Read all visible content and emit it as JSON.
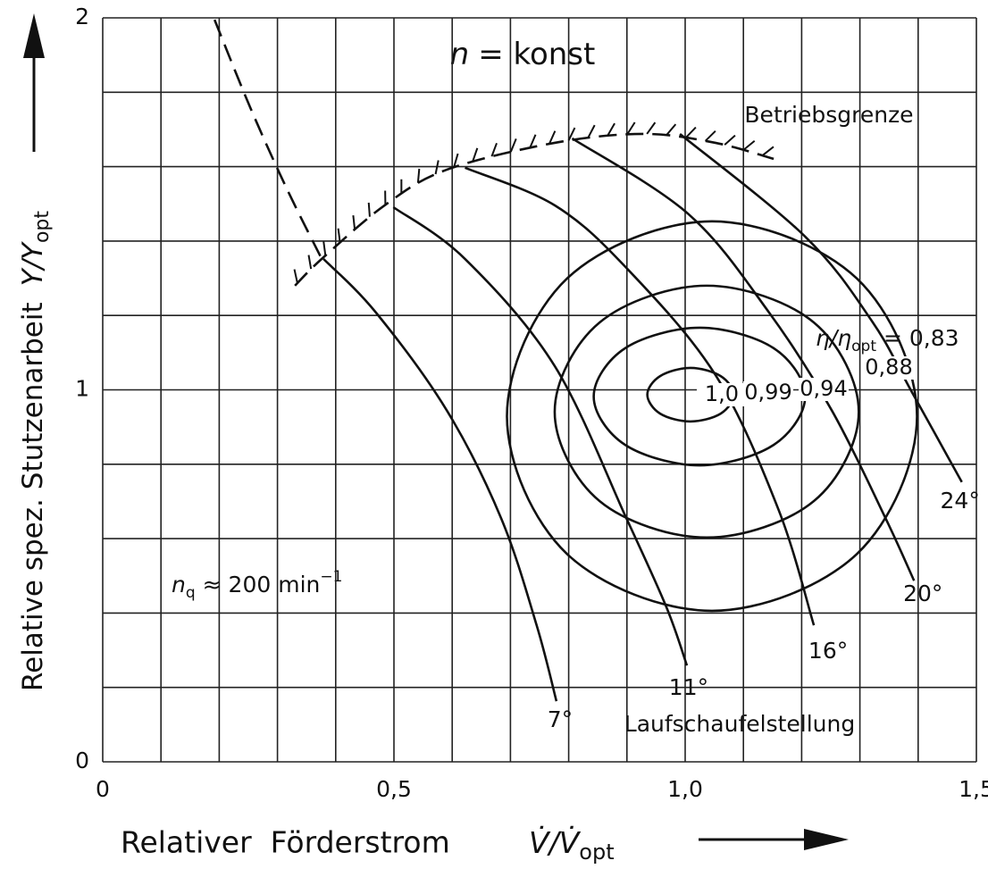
{
  "chart_data": {
    "type": "line",
    "color": "#111111",
    "xlim": [
      0,
      1.5
    ],
    "ylim": [
      0,
      2
    ],
    "xticks": [
      0,
      {
        "value": 0.5,
        "label": "0,5"
      },
      {
        "value": 1,
        "label": "1,0"
      },
      {
        "value": 1.5,
        "label": "1,5"
      }
    ],
    "yticks": [
      0,
      1,
      2
    ],
    "xgrid": [
      0,
      0.1,
      0.2,
      0.3,
      0.4,
      0.5,
      0.6,
      0.7,
      0.8,
      0.9,
      1,
      1.1,
      1.2,
      1.3,
      1.4,
      1.5
    ],
    "ygrid": [
      0,
      0.2,
      0.4,
      0.6,
      0.8,
      1,
      1.2,
      1.4,
      1.6,
      1.8,
      2
    ],
    "x_label": {
      "text": "Relativer  Förderstrom",
      "symbol": "V̇/V̇",
      "sub": "opt"
    },
    "y_label": {
      "text": "Relative spez. Stutzenarbeit",
      "symbol": "Y/Y",
      "sub": "opt"
    },
    "annotations": {
      "speed": {
        "symbol": "n",
        "text": "= konst"
      },
      "limit": "Betriebsgrenze",
      "specific_speed": {
        "symbol": "n",
        "sub": "q",
        "text": "≈ 200 min",
        "sup": "−1"
      },
      "blade_setting": "Laufschaufelstellung",
      "efficiency": {
        "symbol": "η/η",
        "sub": "opt",
        "text": "= 0,83"
      }
    },
    "series": [
      {
        "name": "7°",
        "x": [
          0.379,
          0.469,
          0.591,
          0.684,
          0.745,
          0.779
        ],
        "y": [
          1.352,
          1.208,
          0.944,
          0.655,
          0.367,
          0.163
        ]
      },
      {
        "name": "11°",
        "x": [
          0.499,
          0.622,
          0.776,
          0.899,
          0.968,
          1.003
        ],
        "y": [
          1.491,
          1.352,
          1.064,
          0.655,
          0.415,
          0.259
        ]
      },
      {
        "name": "16°",
        "x": [
          0.622,
          0.776,
          0.899,
          1.052,
          1.16,
          1.221
        ],
        "y": [
          1.597,
          1.496,
          1.328,
          1.04,
          0.679,
          0.367
        ]
      },
      {
        "name": "20°",
        "x": [
          0.806,
          1.006,
          1.144,
          1.252,
          1.344,
          1.393
        ],
        "y": [
          1.676,
          1.472,
          1.208,
          0.944,
          0.655,
          0.487
        ]
      },
      {
        "name": "24°",
        "x": [
          0.991,
          1.206,
          1.321,
          1.39,
          1.475
        ],
        "y": [
          1.688,
          1.412,
          1.184,
          0.992,
          0.752
        ]
      }
    ],
    "contours": [
      {
        "name": "1,0",
        "x": [
          1.083,
          1.061,
          1.009,
          0.957,
          0.935,
          0.957,
          1.009,
          1.061
        ],
        "y": [
          0.987,
          1.037,
          1.059,
          1.037,
          0.987,
          0.936,
          0.915,
          0.936
        ]
      },
      {
        "name": "0,99",
        "x": [
          1.206,
          1.152,
          1.025,
          0.897,
          0.843,
          0.897,
          1.025,
          1.152
        ],
        "y": [
          0.982,
          1.112,
          1.167,
          1.112,
          0.982,
          0.852,
          0.797,
          0.852
        ]
      },
      {
        "name": "0,94",
        "x": [
          1.298,
          1.221,
          1.037,
          0.853,
          0.776,
          0.853,
          1.037,
          1.221
        ],
        "y": [
          0.941,
          1.181,
          1.28,
          1.181,
          0.941,
          0.701,
          0.603,
          0.701
        ]
      },
      {
        "name": "0,88",
        "x": [
          1.398,
          1.295,
          1.046,
          0.797,
          0.694,
          0.797,
          1.046,
          1.295
        ],
        "y": [
          0.929,
          1.299,
          1.453,
          1.299,
          0.929,
          0.559,
          0.406,
          0.559
        ]
      }
    ],
    "limit_lines": [
      {
        "style": "dashed",
        "x": [
          0.192,
          0.253,
          0.315,
          0.376
        ],
        "y": [
          1.995,
          1.76,
          1.544,
          1.352
        ]
      },
      {
        "style": "hatched",
        "x": [
          0.33,
          0.376,
          0.484,
          0.591,
          0.776,
          0.929,
          1.052,
          1.152
        ],
        "y": [
          1.28,
          1.352,
          1.496,
          1.592,
          1.664,
          1.688,
          1.664,
          1.621
        ]
      }
    ]
  }
}
